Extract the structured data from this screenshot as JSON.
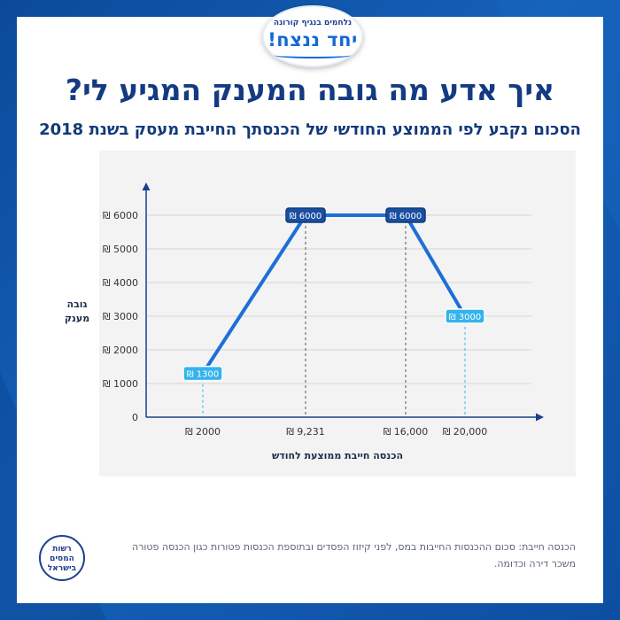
{
  "badge": {
    "line1": "נלחמים בנגיף קורונה",
    "line2": "יחד ננצח!"
  },
  "title": "איך אדע מה גובה המענק המגיע לי?",
  "subtitle": "הסכום נקבע לפי הממוצע החודשי של הכנסתך החייבת מעסק בשנת 2018",
  "footnote": "הכנסה חייבת: סכום ההכנסות החייבות במס, לפני קיזוז הפסדים ובתוספת הכנסות פטורות כגון הכנסה פטורה משכר דירה וכדומה.",
  "logo": {
    "line1": "רשות",
    "line2": "המסים",
    "line3": "בישראל"
  },
  "colors": {
    "background": "#0d4ea2",
    "title": "#143b82",
    "line": "#1d6fd8",
    "label_dark": "#1a4fa0",
    "label_light": "#34b3ec",
    "axis": "#1d3f8e"
  },
  "chart_data": {
    "type": "line",
    "ylabel": "גובה מענק",
    "xlabel": "הכנסה חייבת ממוצעת לחודש",
    "ylim": [
      0,
      6000
    ],
    "y_ticks": [
      "0",
      "₪ 1000",
      "₪ 2000",
      "₪ 3000",
      "₪ 4000",
      "₪ 5000",
      "₪ 6000"
    ],
    "x_ticks": [
      "₪ 2000",
      "₪ 9,231",
      "₪ 16,000",
      "₪ 20,000"
    ],
    "grid": true,
    "points": [
      {
        "x": 2000,
        "y": 1300,
        "label": "₪ 1300",
        "style": "light"
      },
      {
        "x": 9231,
        "y": 6000,
        "label": "₪ 6000",
        "style": "dark"
      },
      {
        "x": 16000,
        "y": 6000,
        "label": "₪ 6000",
        "style": "dark"
      },
      {
        "x": 20000,
        "y": 3000,
        "label": "₪ 3000",
        "style": "light"
      }
    ]
  }
}
